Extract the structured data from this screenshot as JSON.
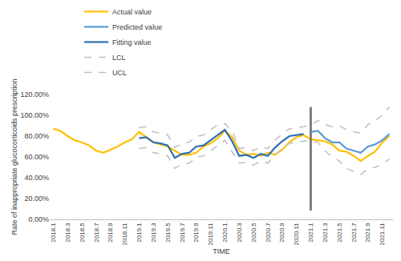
{
  "chart_data": {
    "type": "line",
    "x_label": "TIME",
    "y_label": "Rate of inappropriate glucocorticoids prescription",
    "categories": [
      "2018.1",
      null,
      "2018.3",
      null,
      "2018.5",
      null,
      "2018.7",
      null,
      "2018.9",
      null,
      "2018.11",
      null,
      "2019.1",
      null,
      "2019.3",
      null,
      "2019.5",
      null,
      "2019.7",
      null,
      "2019.9",
      null,
      "2019.11",
      null,
      "2020.1",
      null,
      "2020.3",
      null,
      "2020.5",
      null,
      "2020.7",
      null,
      "2020.9",
      null,
      "2020.11",
      null,
      "2021.1",
      null,
      "2021.3",
      null,
      "2021.5",
      null,
      "2021.7",
      null,
      "2021.9",
      null,
      "2021.11",
      null
    ],
    "series": [
      {
        "name": "Actual value",
        "color": "#FFC000",
        "line_style": "solid",
        "values": [
          87,
          85,
          80,
          76,
          74,
          71,
          66,
          64,
          67,
          70,
          74,
          77,
          84,
          79,
          74,
          72,
          70,
          66,
          62,
          62,
          64,
          70,
          73,
          78,
          85,
          79,
          66,
          62,
          63,
          61,
          64,
          62,
          67,
          74,
          79,
          81,
          77,
          76,
          75,
          72,
          66,
          65,
          61,
          56,
          61,
          65,
          74,
          80
        ]
      },
      {
        "name": "Predicted value",
        "color": "#5B9BD5",
        "line_style": "solid",
        "values": [
          null,
          null,
          null,
          null,
          null,
          null,
          null,
          null,
          null,
          null,
          null,
          null,
          null,
          null,
          null,
          null,
          null,
          null,
          null,
          null,
          null,
          null,
          null,
          null,
          null,
          null,
          null,
          null,
          null,
          null,
          null,
          null,
          null,
          null,
          null,
          null,
          84,
          85,
          78,
          74,
          74,
          68,
          66,
          64,
          70,
          72,
          76,
          82
        ]
      },
      {
        "name": "Fitting value",
        "color": "#2E6DB4",
        "line_style": "solid",
        "values": [
          null,
          null,
          null,
          null,
          null,
          null,
          null,
          null,
          null,
          null,
          null,
          null,
          78,
          79,
          74,
          73,
          71,
          59,
          63,
          64,
          70,
          71,
          76,
          81,
          86,
          75,
          61,
          62,
          59,
          63,
          61,
          69,
          75,
          80,
          81,
          82,
          null,
          null,
          null,
          null,
          null,
          null,
          null,
          null,
          null,
          null,
          null,
          null
        ]
      },
      {
        "name": "LCL",
        "color": "#BFBFBF",
        "line_style": "dashed",
        "values": [
          null,
          null,
          null,
          null,
          null,
          null,
          null,
          null,
          null,
          null,
          null,
          null,
          68,
          69,
          64,
          63,
          61,
          49,
          53,
          54,
          60,
          61,
          66,
          71,
          76,
          65,
          54,
          55,
          52,
          56,
          54,
          62,
          68,
          73,
          74,
          75,
          76,
          74,
          66,
          60,
          56,
          49,
          46,
          43,
          49,
          50,
          53,
          58
        ]
      },
      {
        "name": "UCL",
        "color": "#BFBFBF",
        "line_style": "dashed",
        "values": [
          null,
          null,
          null,
          null,
          null,
          null,
          null,
          null,
          null,
          null,
          null,
          null,
          88,
          89,
          84,
          83,
          81,
          69,
          73,
          74,
          80,
          81,
          86,
          91,
          92,
          85,
          68,
          69,
          66,
          70,
          68,
          76,
          82,
          87,
          88,
          89,
          91,
          95,
          91,
          89,
          90,
          86,
          84,
          83,
          91,
          95,
          100,
          108
        ]
      }
    ],
    "ylim": [
      0,
      120
    ],
    "yticks": [
      {
        "value": 0,
        "label": "0.00%"
      },
      {
        "value": 20,
        "label": "20.00%"
      },
      {
        "value": 40,
        "label": "40.00%"
      },
      {
        "value": 60,
        "label": "60.00%"
      },
      {
        "value": 80,
        "label": "80.00%"
      },
      {
        "value": 100,
        "label": "100.00%"
      },
      {
        "value": 120,
        "label": "120.00%"
      }
    ],
    "grid": false,
    "legend": "top"
  }
}
